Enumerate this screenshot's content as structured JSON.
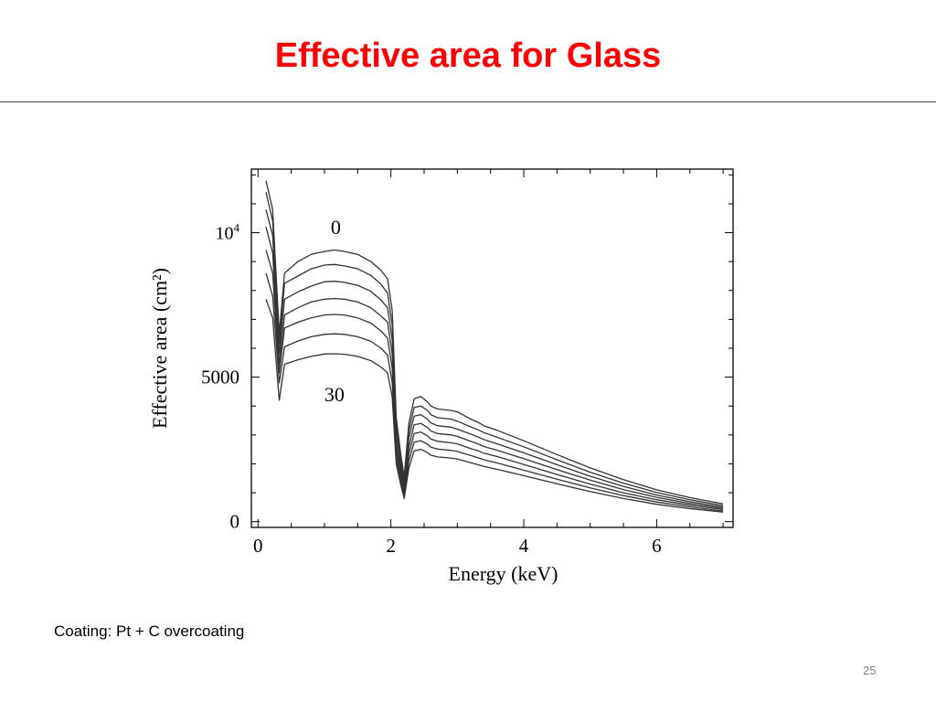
{
  "slide": {
    "title": "Effective area for Glass",
    "caption": "Coating: Pt + C overcoating",
    "page_number": "25",
    "title_color": "#ff0000"
  },
  "chart_data": {
    "type": "line",
    "title": "",
    "xlabel": "Energy (keV)",
    "ylabel": "Effective area (cm²)",
    "xlim": [
      -0.1,
      7.15
    ],
    "ylim": [
      -200,
      12200
    ],
    "x_ticks": [
      0,
      2,
      4,
      6
    ],
    "x_tick_labels": [
      "0",
      "2",
      "4",
      "6"
    ],
    "y_ticks": [
      0,
      5000,
      10000
    ],
    "y_tick_labels": [
      "0",
      "5000",
      "10⁴"
    ],
    "annotations": [
      {
        "text": "0",
        "x": 1.17,
        "y": 9950
      },
      {
        "text": "30",
        "x": 1.15,
        "y": 4170
      }
    ],
    "grid": false,
    "line_color": "#333333",
    "x": [
      0.12,
      0.22,
      0.32,
      0.4,
      0.6,
      0.8,
      1.0,
      1.15,
      1.3,
      1.5,
      1.7,
      1.85,
      1.95,
      2.02,
      2.08,
      2.15,
      2.2,
      2.27,
      2.35,
      2.45,
      2.55,
      2.6,
      2.7,
      2.9,
      3.0,
      3.2,
      3.3,
      3.4,
      3.6,
      4.0,
      4.5,
      5.0,
      5.5,
      6.0,
      6.5,
      7.0
    ],
    "series": [
      {
        "values": [
          11800,
          10800,
          6500,
          8600,
          9000,
          9250,
          9350,
          9400,
          9350,
          9250,
          9000,
          8700,
          8400,
          7300,
          3600,
          2300,
          1550,
          3400,
          4250,
          4330,
          4150,
          4000,
          3900,
          3850,
          3800,
          3550,
          3450,
          3320,
          3160,
          2800,
          2320,
          1860,
          1450,
          1100,
          830,
          620
        ]
      },
      {
        "values": [
          11400,
          10400,
          6150,
          8250,
          8500,
          8750,
          8880,
          8900,
          8850,
          8750,
          8520,
          8220,
          7900,
          6800,
          3300,
          2100,
          1400,
          3150,
          3950,
          4000,
          3850,
          3700,
          3600,
          3550,
          3480,
          3280,
          3190,
          3080,
          2920,
          2590,
          2140,
          1710,
          1330,
          1010,
          760,
          560
        ]
      },
      {
        "values": [
          10800,
          9900,
          5800,
          7700,
          7950,
          8150,
          8300,
          8320,
          8280,
          8180,
          7970,
          7670,
          7400,
          6300,
          3000,
          1900,
          1250,
          2900,
          3650,
          3700,
          3550,
          3420,
          3320,
          3270,
          3200,
          3030,
          2940,
          2840,
          2690,
          2380,
          1970,
          1570,
          1220,
          920,
          690,
          510
        ]
      },
      {
        "values": [
          10200,
          9300,
          5450,
          7150,
          7400,
          7600,
          7700,
          7720,
          7700,
          7600,
          7400,
          7120,
          6900,
          5800,
          2700,
          1700,
          1100,
          2600,
          3350,
          3400,
          3260,
          3140,
          3050,
          3000,
          2950,
          2780,
          2700,
          2600,
          2470,
          2180,
          1800,
          1440,
          1110,
          840,
          630,
          460
        ]
      },
      {
        "values": [
          9400,
          8600,
          5150,
          6700,
          6900,
          7050,
          7150,
          7170,
          7150,
          7050,
          6870,
          6600,
          6350,
          5300,
          2450,
          1550,
          1000,
          2350,
          3050,
          3100,
          2970,
          2860,
          2780,
          2730,
          2690,
          2530,
          2460,
          2370,
          2250,
          1980,
          1630,
          1300,
          1000,
          760,
          570,
          420
        ]
      },
      {
        "values": [
          8600,
          7800,
          4800,
          6050,
          6250,
          6400,
          6480,
          6500,
          6480,
          6400,
          6240,
          6000,
          5770,
          4800,
          2200,
          1400,
          900,
          2100,
          2750,
          2800,
          2680,
          2580,
          2510,
          2470,
          2430,
          2290,
          2220,
          2140,
          2030,
          1780,
          1470,
          1170,
          900,
          680,
          510,
          370
        ]
      },
      {
        "values": [
          7700,
          7050,
          4200,
          5450,
          5600,
          5720,
          5800,
          5810,
          5790,
          5720,
          5570,
          5350,
          5150,
          4300,
          2000,
          1250,
          800,
          1850,
          2450,
          2500,
          2390,
          2300,
          2240,
          2200,
          2170,
          2040,
          1980,
          1910,
          1810,
          1590,
          1310,
          1040,
          800,
          600,
          450,
          330
        ]
      }
    ]
  }
}
